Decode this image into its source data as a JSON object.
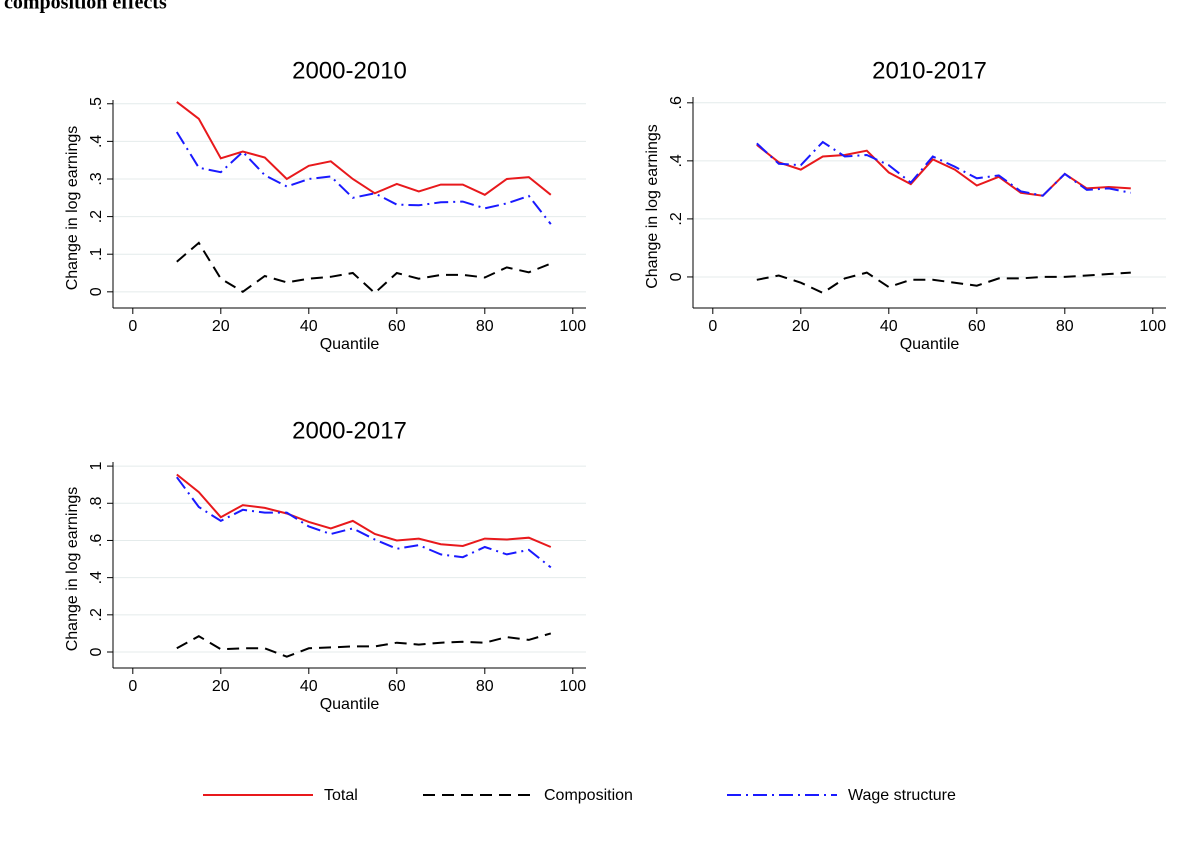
{
  "heading": "composition effects",
  "chart_data": [
    {
      "type": "line",
      "title": "2000-2010",
      "x_label": "Quantile",
      "y_label": "Change in log earnings",
      "x": [
        10,
        15,
        20,
        25,
        30,
        35,
        40,
        45,
        50,
        55,
        60,
        65,
        70,
        75,
        80,
        85,
        90,
        95
      ],
      "xlim": [
        -4.5,
        103
      ],
      "xticks": [
        0,
        20,
        40,
        60,
        80,
        100
      ],
      "ylim": [
        -0.043,
        0.51
      ],
      "yticks": [
        0,
        {
          "value": 0.1,
          "label": ".1"
        },
        {
          "value": 0.2,
          "label": ".2"
        },
        {
          "value": 0.3,
          "label": ".3"
        },
        {
          "value": 0.4,
          "label": ".4"
        },
        {
          "value": 0.5,
          "label": ".5"
        }
      ],
      "grid": true,
      "series": [
        {
          "name": "Total",
          "color": "#e8191c",
          "values": [
            0.505,
            0.46,
            0.355,
            0.373,
            0.357,
            0.3,
            0.335,
            0.347,
            0.3,
            0.262,
            0.287,
            0.267,
            0.285,
            0.285,
            0.258,
            0.3,
            0.305,
            0.258
          ]
        },
        {
          "name": "Composition",
          "color": "#000000",
          "values": [
            0.08,
            0.13,
            0.035,
            0.0,
            0.042,
            0.025,
            0.035,
            0.04,
            0.05,
            -0.003,
            0.05,
            0.035,
            0.045,
            0.045,
            0.038,
            0.065,
            0.052,
            0.075
          ]
        },
        {
          "name": "Wage structure",
          "color": "#1a1aff",
          "values": [
            0.425,
            0.33,
            0.318,
            0.372,
            0.31,
            0.28,
            0.3,
            0.307,
            0.25,
            0.262,
            0.232,
            0.23,
            0.238,
            0.24,
            0.222,
            0.235,
            0.255,
            0.18
          ]
        }
      ]
    },
    {
      "type": "line",
      "title": "2010-2017",
      "x_label": "Quantile",
      "y_label": "Change in log earnings",
      "x": [
        10,
        15,
        20,
        25,
        30,
        35,
        40,
        45,
        50,
        55,
        60,
        65,
        70,
        75,
        80,
        85,
        90,
        95
      ],
      "xlim": [
        -4.5,
        103
      ],
      "xticks": [
        0,
        20,
        40,
        60,
        80,
        100
      ],
      "ylim": [
        -0.107,
        0.62
      ],
      "yticks": [
        0,
        {
          "value": 0.2,
          "label": ".2"
        },
        {
          "value": 0.4,
          "label": ".4"
        },
        {
          "value": 0.6,
          "label": ".6"
        }
      ],
      "grid": true,
      "series": [
        {
          "name": "Total",
          "color": "#e8191c",
          "values": [
            0.455,
            0.395,
            0.37,
            0.415,
            0.42,
            0.435,
            0.36,
            0.32,
            0.405,
            0.37,
            0.315,
            0.345,
            0.29,
            0.28,
            0.355,
            0.305,
            0.31,
            0.305
          ]
        },
        {
          "name": "Composition",
          "color": "#000000",
          "values": [
            -0.01,
            0.005,
            -0.02,
            -0.055,
            -0.005,
            0.015,
            -0.035,
            -0.01,
            -0.01,
            -0.02,
            -0.03,
            -0.005,
            -0.005,
            0,
            0,
            0.005,
            0.01,
            0.015
          ]
        },
        {
          "name": "Wage structure",
          "color": "#1a1aff",
          "values": [
            0.46,
            0.39,
            0.385,
            0.465,
            0.415,
            0.42,
            0.385,
            0.325,
            0.415,
            0.38,
            0.34,
            0.35,
            0.295,
            0.28,
            0.355,
            0.3,
            0.305,
            0.29
          ]
        }
      ]
    },
    {
      "type": "line",
      "title": "2000-2017",
      "x_label": "Quantile",
      "y_label": "Change in log earnings",
      "x": [
        10,
        15,
        20,
        25,
        30,
        35,
        40,
        45,
        50,
        55,
        60,
        65,
        70,
        75,
        80,
        85,
        90,
        95
      ],
      "xlim": [
        -4.5,
        103
      ],
      "xticks": [
        0,
        20,
        40,
        60,
        80,
        100
      ],
      "ylim": [
        -0.086,
        1.022
      ],
      "yticks": [
        0,
        {
          "value": 0.2,
          "label": ".2"
        },
        {
          "value": 0.4,
          "label": ".4"
        },
        {
          "value": 0.6,
          "label": ".6"
        },
        {
          "value": 0.8,
          "label": ".8"
        },
        1
      ],
      "grid": true,
      "series": [
        {
          "name": "Total",
          "color": "#e8191c",
          "values": [
            0.955,
            0.86,
            0.725,
            0.79,
            0.775,
            0.745,
            0.7,
            0.665,
            0.705,
            0.635,
            0.6,
            0.61,
            0.58,
            0.57,
            0.61,
            0.605,
            0.615,
            0.565
          ]
        },
        {
          "name": "Composition",
          "color": "#000000",
          "values": [
            0.02,
            0.085,
            0.015,
            0.02,
            0.02,
            -0.025,
            0.02,
            0.025,
            0.03,
            0.03,
            0.05,
            0.04,
            0.05,
            0.055,
            0.05,
            0.08,
            0.065,
            0.1
          ]
        },
        {
          "name": "Wage structure",
          "color": "#1a1aff",
          "values": [
            0.94,
            0.78,
            0.705,
            0.765,
            0.75,
            0.75,
            0.675,
            0.635,
            0.665,
            0.605,
            0.555,
            0.575,
            0.525,
            0.51,
            0.565,
            0.525,
            0.55,
            0.455
          ]
        }
      ]
    }
  ]
}
